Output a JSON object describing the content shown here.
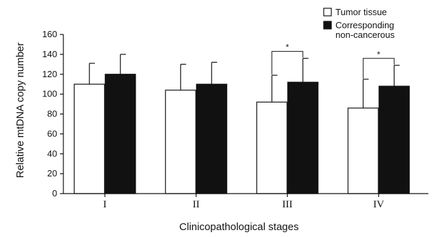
{
  "chart_data": {
    "type": "bar",
    "categories": [
      "I",
      "II",
      "III",
      "IV"
    ],
    "series": [
      {
        "name": "Tumor tissue",
        "values": [
          110,
          104,
          92,
          86
        ],
        "errors": [
          21,
          26,
          27,
          29
        ],
        "color": "#ffffff"
      },
      {
        "name": "Corresponding non-cancerous",
        "values": [
          120,
          110,
          112,
          108
        ],
        "errors": [
          20,
          22,
          24,
          21
        ],
        "color": "#111111"
      }
    ],
    "xlabel": "Clinicopathological stages",
    "ylabel": "Relative mtDNA copy number",
    "ylim": [
      0,
      160
    ],
    "yticks": [
      0,
      20,
      40,
      60,
      80,
      100,
      120,
      140,
      160
    ],
    "grid": false,
    "legend_position": "top-right",
    "significance": [
      {
        "category_index": 2,
        "label": "*"
      },
      {
        "category_index": 3,
        "label": "*"
      }
    ]
  },
  "legend": {
    "line1": "Tumor tissue",
    "line2a": "Corresponding",
    "line2b": "non-cancerous"
  }
}
